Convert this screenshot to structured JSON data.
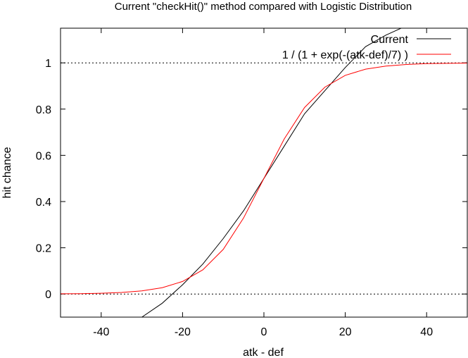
{
  "chart_data": {
    "type": "line",
    "title": "Current \"checkHit()\" method compared with Logistic Distribution",
    "xlabel": "atk - def",
    "ylabel": "hit chance",
    "xlim": [
      -50,
      50
    ],
    "ylim": [
      -0.1,
      1.15
    ],
    "x_ticks": [
      -40,
      -20,
      0,
      20,
      40
    ],
    "x_tick_labels": [
      "-40",
      "-20",
      "0",
      "20",
      "40"
    ],
    "y_ticks": [
      0,
      0.2,
      0.4,
      0.6,
      0.8,
      1
    ],
    "y_tick_labels": [
      "0",
      "0.2",
      "0.4",
      "0.6",
      "0.8",
      "1"
    ],
    "grid": false,
    "reference_lines": [
      0,
      1
    ],
    "legend_position": "top-right",
    "series": [
      {
        "name": "Current",
        "color": "#000000",
        "x": [
          -30,
          -25,
          -20,
          -15,
          -10,
          -5,
          0,
          5,
          10,
          15,
          20,
          25,
          30,
          35
        ],
        "y": [
          -0.1,
          -0.04,
          0.04,
          0.13,
          0.24,
          0.36,
          0.5,
          0.64,
          0.78,
          0.88,
          0.98,
          1.07,
          1.12,
          1.16
        ]
      },
      {
        "name": "1 / (1 + exp(-(atk-def)/7) )",
        "color": "#ff0000",
        "x": [
          -50,
          -45,
          -40,
          -35,
          -30,
          -25,
          -20,
          -15,
          -10,
          -5,
          0,
          5,
          10,
          15,
          20,
          25,
          30,
          35,
          40,
          45,
          50
        ],
        "y": [
          0.0008,
          0.0016,
          0.0033,
          0.0067,
          0.0136,
          0.0273,
          0.0543,
          0.105,
          0.193,
          0.329,
          0.5,
          0.671,
          0.807,
          0.895,
          0.946,
          0.973,
          0.986,
          0.993,
          0.997,
          0.998,
          0.999
        ]
      }
    ]
  }
}
